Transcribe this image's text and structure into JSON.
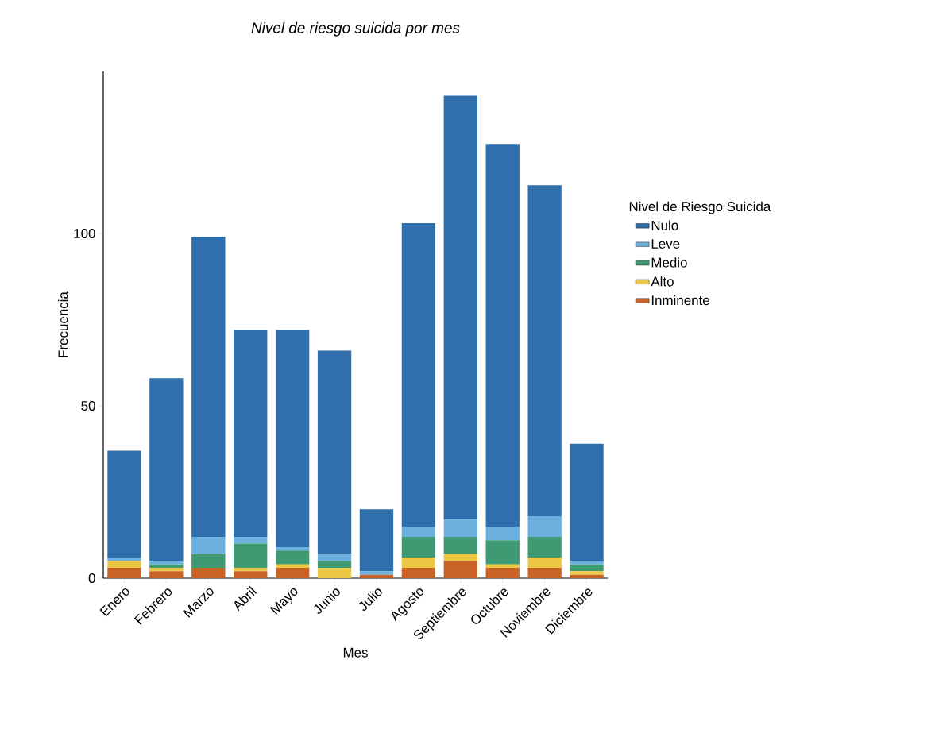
{
  "chart_data": {
    "type": "bar",
    "title": "*Nivel de riesgo suicida por mes*",
    "xlabel": "Mes",
    "ylabel": "Frecuencia",
    "legend_title": "Nivel de Riesgo Suicida",
    "categories": [
      "Enero",
      "Febrero",
      "Marzo",
      "Abril",
      "Mayo",
      "Junio",
      "Julio",
      "Agosto",
      "Septiembre",
      "Octubre",
      "Noviembre",
      "Diciembre"
    ],
    "stacked": true,
    "series": [
      {
        "name": "Inminente",
        "color": "#c96426",
        "values": [
          3,
          2,
          3,
          2,
          3,
          0,
          1,
          3,
          5,
          3,
          3,
          1
        ]
      },
      {
        "name": "Alto",
        "color": "#ecc744",
        "values": [
          2,
          1,
          0,
          1,
          1,
          3,
          0,
          3,
          2,
          1,
          3,
          1
        ]
      },
      {
        "name": "Medio",
        "color": "#3f9a73",
        "values": [
          0,
          1,
          4,
          7,
          4,
          2,
          0,
          6,
          5,
          7,
          6,
          2
        ]
      },
      {
        "name": "Leve",
        "color": "#6cb0e0",
        "values": [
          1,
          1,
          5,
          2,
          1,
          2,
          1,
          3,
          5,
          4,
          6,
          1
        ]
      },
      {
        "name": "Nulo",
        "color": "#2f6fad",
        "values": [
          31,
          53,
          87,
          60,
          63,
          59,
          18,
          88,
          123,
          111,
          96,
          34
        ]
      }
    ],
    "ylim": [
      0,
      147
    ],
    "yticks": [
      0,
      50,
      100
    ],
    "grid": false,
    "legend": "right"
  }
}
